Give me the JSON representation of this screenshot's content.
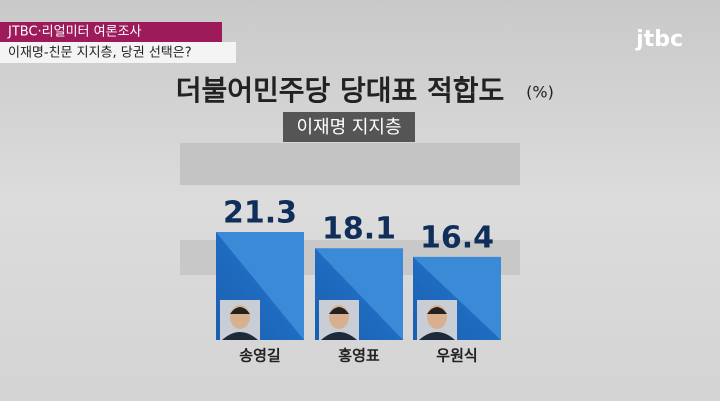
{
  "chart_data": {
    "type": "bar",
    "banner": "JTBC·리얼미터 여론조사",
    "headline": "이재명-친문 지지층, 당권 선택은?",
    "logo": "jtbc",
    "title": "더불어민주당 당대표 적합도",
    "unit": "(%)",
    "subtitle": "이재명 지지층",
    "categories": [
      "송영길",
      "홍영표",
      "우원식"
    ],
    "values": [
      21.3,
      18.1,
      16.4
    ],
    "color": "#1f6cc0"
  }
}
